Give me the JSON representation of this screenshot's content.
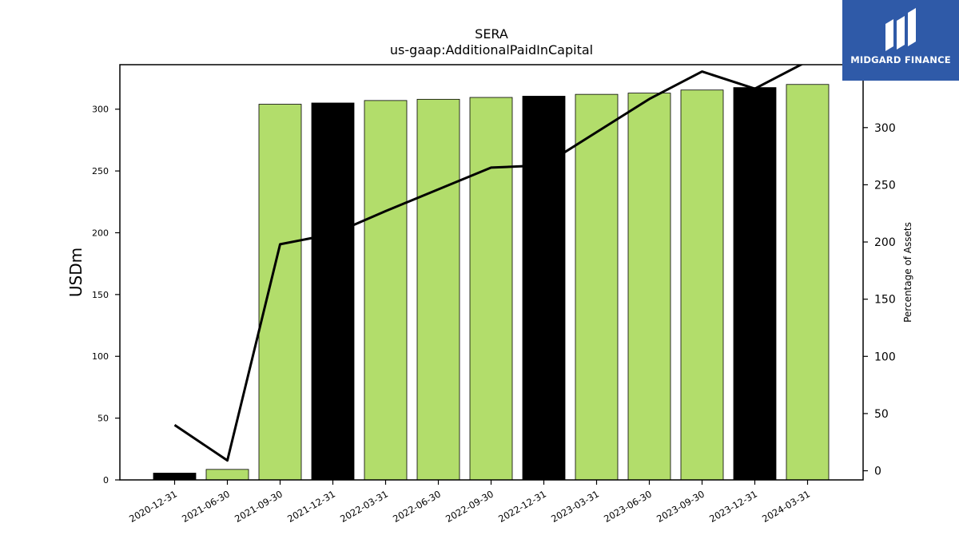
{
  "chart_data": {
    "type": "bar",
    "title": "SERA",
    "subtitle": "us-gaap:AdditionalPaidInCapital",
    "ylabel": "USDm",
    "y2label": "Percentage of Assets",
    "categories": [
      "2020-12-31",
      "2021-06-30",
      "2021-09-30",
      "2021-12-31",
      "2022-03-31",
      "2022-06-30",
      "2022-09-30",
      "2022-12-31",
      "2023-03-31",
      "2023-06-30",
      "2023-09-30",
      "2023-12-31",
      "2024-03-31"
    ],
    "series": [
      {
        "type": "bar",
        "values": [
          5.5,
          8.5,
          304,
          305,
          307,
          308,
          309.5,
          310.5,
          312,
          313,
          315.5,
          317.5,
          320
        ],
        "colors": [
          "#000000",
          "#b2dd6b",
          "#b2dd6b",
          "#000000",
          "#b2dd6b",
          "#b2dd6b",
          "#b2dd6b",
          "#000000",
          "#b2dd6b",
          "#b2dd6b",
          "#b2dd6b",
          "#000000",
          "#b2dd6b"
        ]
      },
      {
        "type": "line",
        "axis": "right",
        "color": "#000000",
        "values": [
          40,
          9,
          198,
          207,
          227,
          246,
          265,
          267,
          296,
          325,
          349,
          334,
          358
        ]
      }
    ],
    "ylim": [
      0,
      336
    ],
    "y2lim": [
      -8,
      355
    ],
    "yticks": [
      0,
      50,
      100,
      150,
      200,
      250,
      300
    ],
    "y2ticks": [
      0,
      50,
      100,
      150,
      200,
      250,
      300
    ],
    "grid": false,
    "legend": "none"
  },
  "logo": {
    "text": "MIDGARD FINANCE",
    "background": "#2f5aa8"
  }
}
